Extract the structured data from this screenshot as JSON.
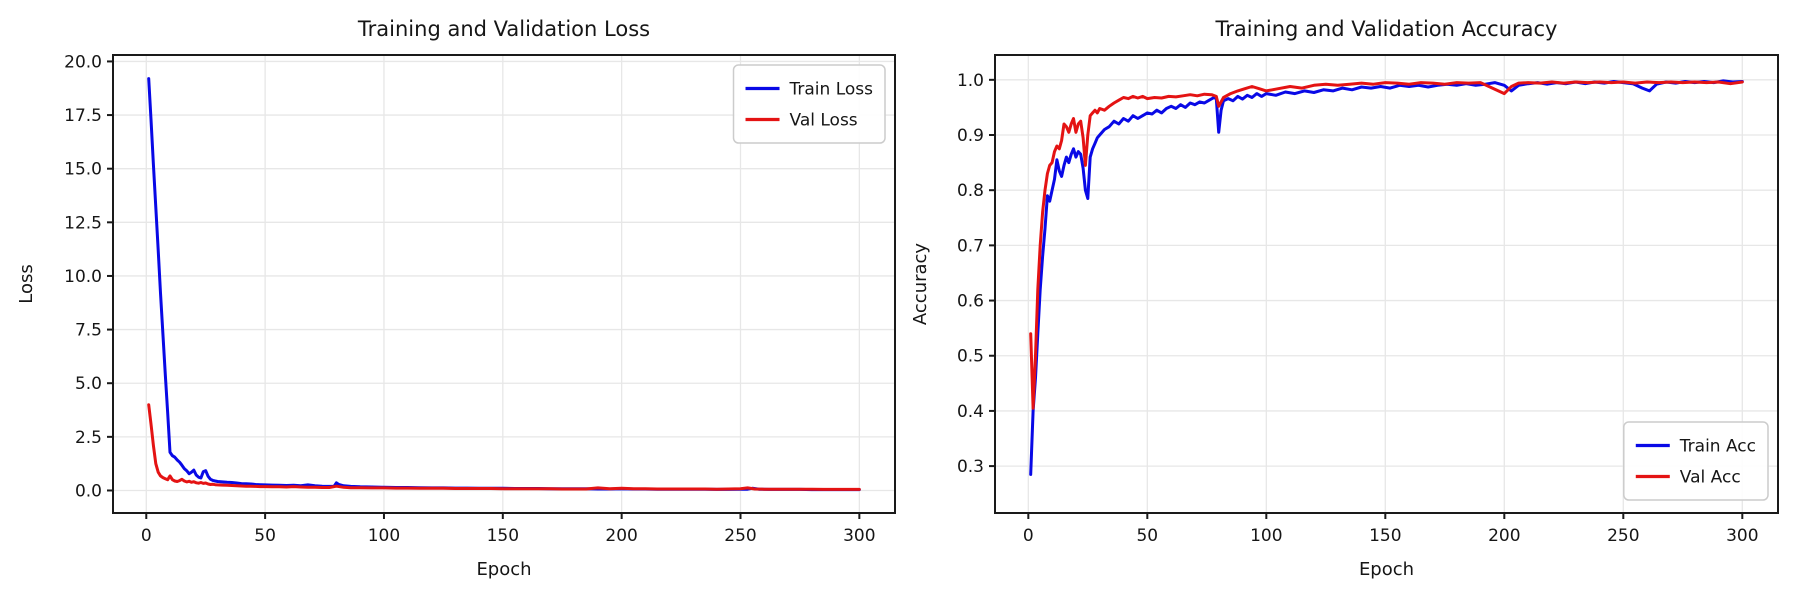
{
  "figure": {
    "background": "#ffffff",
    "grid_color": "#e7e7e7",
    "spine_color": "#1a1a1a",
    "text_color": "#161616",
    "legend_border": "#cccccc"
  },
  "chart_data": [
    {
      "id": "loss",
      "type": "line",
      "title": "Training and Validation Loss",
      "xlabel": "Epoch",
      "ylabel": "Loss",
      "xlim": [
        -14,
        315
      ],
      "ylim": [
        -1.05,
        20.3
      ],
      "grid": true,
      "xticks": [
        0,
        50,
        100,
        150,
        200,
        250,
        300
      ],
      "xtick_labels": [
        "0",
        "50",
        "100",
        "150",
        "200",
        "250",
        "300"
      ],
      "yticks": [
        0,
        2.5,
        5,
        7.5,
        10,
        12.5,
        15,
        17.5,
        20
      ],
      "ytick_labels": [
        "0.0",
        "2.5",
        "5.0",
        "7.5",
        "10.0",
        "12.5",
        "15.0",
        "17.5",
        "20.0"
      ],
      "legend": {
        "position": "top-right",
        "entries": [
          {
            "label": "Train Loss",
            "color": "#0909e6"
          },
          {
            "label": "Val Loss",
            "color": "#e41313"
          }
        ]
      },
      "series": [
        {
          "name": "Train Loss",
          "slug": "train-loss",
          "color": "#0909e6",
          "x": [
            1,
            2,
            3,
            4,
            5,
            6,
            7,
            8,
            9,
            10,
            11,
            12,
            13,
            14,
            15,
            16,
            17,
            18,
            19,
            20,
            21,
            22,
            23,
            24,
            25,
            26,
            27,
            28,
            29,
            30,
            32,
            34,
            36,
            38,
            40,
            42,
            44,
            46,
            48,
            50,
            53,
            56,
            59,
            62,
            65,
            68,
            71,
            74,
            77,
            79,
            80,
            81,
            83,
            86,
            90,
            95,
            100,
            105,
            110,
            115,
            120,
            125,
            130,
            135,
            140,
            145,
            150,
            155,
            160,
            165,
            170,
            175,
            180,
            185,
            190,
            195,
            200,
            205,
            210,
            215,
            220,
            225,
            230,
            235,
            240,
            245,
            250,
            253,
            255,
            258,
            262,
            266,
            270,
            275,
            280,
            285,
            290,
            295,
            300
          ],
          "y": [
            19.2,
            17.3,
            15.2,
            13.2,
            11.2,
            9.2,
            7.3,
            5.4,
            3.6,
            1.78,
            1.62,
            1.55,
            1.42,
            1.32,
            1.18,
            1.02,
            0.92,
            0.78,
            0.85,
            0.95,
            0.72,
            0.62,
            0.58,
            0.88,
            0.92,
            0.66,
            0.52,
            0.47,
            0.44,
            0.42,
            0.4,
            0.38,
            0.37,
            0.35,
            0.32,
            0.31,
            0.3,
            0.28,
            0.27,
            0.26,
            0.25,
            0.24,
            0.23,
            0.24,
            0.22,
            0.26,
            0.22,
            0.2,
            0.19,
            0.2,
            0.36,
            0.28,
            0.22,
            0.19,
            0.17,
            0.16,
            0.15,
            0.14,
            0.14,
            0.13,
            0.12,
            0.12,
            0.11,
            0.11,
            0.1,
            0.1,
            0.1,
            0.09,
            0.09,
            0.09,
            0.08,
            0.08,
            0.08,
            0.08,
            0.07,
            0.07,
            0.08,
            0.07,
            0.07,
            0.06,
            0.06,
            0.06,
            0.06,
            0.06,
            0.05,
            0.05,
            0.06,
            0.06,
            0.1,
            0.06,
            0.05,
            0.05,
            0.05,
            0.05,
            0.04,
            0.04,
            0.04,
            0.04,
            0.04
          ]
        },
        {
          "name": "Val Loss",
          "slug": "val-loss",
          "color": "#e41313",
          "x": [
            1,
            2,
            3,
            4,
            5,
            6,
            7,
            8,
            9,
            10,
            11,
            12,
            13,
            14,
            15,
            16,
            17,
            18,
            19,
            20,
            21,
            22,
            23,
            24,
            25,
            26,
            27,
            28,
            29,
            30,
            32,
            34,
            36,
            38,
            40,
            42,
            44,
            46,
            48,
            50,
            53,
            56,
            59,
            62,
            65,
            68,
            71,
            74,
            77,
            80,
            83,
            86,
            90,
            95,
            100,
            105,
            110,
            115,
            120,
            125,
            130,
            135,
            140,
            145,
            150,
            155,
            160,
            165,
            170,
            175,
            180,
            185,
            190,
            195,
            200,
            205,
            210,
            215,
            220,
            225,
            230,
            235,
            240,
            245,
            250,
            253,
            256,
            260,
            265,
            270,
            275,
            280,
            285,
            290,
            295,
            300
          ],
          "y": [
            4.0,
            3.1,
            2.1,
            1.25,
            0.85,
            0.68,
            0.6,
            0.55,
            0.5,
            0.68,
            0.5,
            0.44,
            0.42,
            0.46,
            0.52,
            0.44,
            0.4,
            0.43,
            0.38,
            0.41,
            0.36,
            0.34,
            0.37,
            0.33,
            0.35,
            0.3,
            0.28,
            0.29,
            0.27,
            0.26,
            0.25,
            0.24,
            0.23,
            0.22,
            0.21,
            0.2,
            0.2,
            0.19,
            0.18,
            0.18,
            0.17,
            0.17,
            0.16,
            0.18,
            0.16,
            0.15,
            0.15,
            0.14,
            0.14,
            0.2,
            0.15,
            0.13,
            0.13,
            0.12,
            0.12,
            0.11,
            0.11,
            0.1,
            0.1,
            0.1,
            0.09,
            0.09,
            0.09,
            0.09,
            0.08,
            0.08,
            0.08,
            0.08,
            0.08,
            0.07,
            0.07,
            0.07,
            0.12,
            0.08,
            0.1,
            0.08,
            0.08,
            0.07,
            0.07,
            0.07,
            0.07,
            0.07,
            0.06,
            0.07,
            0.08,
            0.12,
            0.07,
            0.06,
            0.06,
            0.06,
            0.06,
            0.06,
            0.05,
            0.05,
            0.05,
            0.05
          ]
        }
      ]
    },
    {
      "id": "accuracy",
      "type": "line",
      "title": "Training and Validation Accuracy",
      "xlabel": "Epoch",
      "ylabel": "Accuracy",
      "xlim": [
        -14,
        315
      ],
      "ylim": [
        0.215,
        1.045
      ],
      "grid": true,
      "xticks": [
        0,
        50,
        100,
        150,
        200,
        250,
        300
      ],
      "xtick_labels": [
        "0",
        "50",
        "100",
        "150",
        "200",
        "250",
        "300"
      ],
      "yticks": [
        0.3,
        0.4,
        0.5,
        0.6,
        0.7,
        0.8,
        0.9,
        1.0
      ],
      "ytick_labels": [
        "0.3",
        "0.4",
        "0.5",
        "0.6",
        "0.7",
        "0.8",
        "0.9",
        "1.0"
      ],
      "legend": {
        "position": "bottom-right",
        "entries": [
          {
            "label": "Train Acc",
            "color": "#0909e6"
          },
          {
            "label": "Val Acc",
            "color": "#e41313"
          }
        ]
      },
      "series": [
        {
          "name": "Train Acc",
          "slug": "train-acc",
          "color": "#0909e6",
          "x": [
            1,
            2,
            3,
            4,
            5,
            6,
            7,
            8,
            9,
            10,
            11,
            12,
            13,
            14,
            15,
            16,
            17,
            18,
            19,
            20,
            21,
            22,
            23,
            24,
            25,
            26,
            27,
            28,
            29,
            30,
            32,
            34,
            36,
            38,
            40,
            42,
            44,
            46,
            48,
            50,
            52,
            54,
            56,
            58,
            60,
            62,
            64,
            66,
            68,
            70,
            72,
            74,
            76,
            78,
            79,
            80,
            81,
            82,
            84,
            86,
            88,
            90,
            92,
            94,
            96,
            98,
            100,
            104,
            108,
            112,
            116,
            120,
            124,
            128,
            132,
            136,
            140,
            144,
            148,
            152,
            156,
            160,
            164,
            168,
            172,
            176,
            180,
            184,
            188,
            192,
            196,
            200,
            203,
            206,
            210,
            214,
            218,
            222,
            226,
            230,
            234,
            238,
            242,
            246,
            250,
            254,
            258,
            261,
            264,
            268,
            272,
            276,
            280,
            284,
            288,
            292,
            296,
            300
          ],
          "y": [
            0.285,
            0.4,
            0.46,
            0.54,
            0.62,
            0.68,
            0.73,
            0.79,
            0.78,
            0.8,
            0.82,
            0.855,
            0.835,
            0.825,
            0.845,
            0.86,
            0.85,
            0.865,
            0.875,
            0.86,
            0.87,
            0.865,
            0.84,
            0.8,
            0.785,
            0.86,
            0.875,
            0.885,
            0.895,
            0.9,
            0.91,
            0.915,
            0.925,
            0.92,
            0.93,
            0.925,
            0.935,
            0.93,
            0.935,
            0.94,
            0.938,
            0.945,
            0.94,
            0.948,
            0.952,
            0.948,
            0.955,
            0.95,
            0.958,
            0.955,
            0.96,
            0.958,
            0.963,
            0.968,
            0.966,
            0.905,
            0.945,
            0.962,
            0.966,
            0.962,
            0.97,
            0.965,
            0.972,
            0.968,
            0.975,
            0.97,
            0.975,
            0.972,
            0.978,
            0.975,
            0.98,
            0.977,
            0.982,
            0.98,
            0.985,
            0.982,
            0.987,
            0.985,
            0.988,
            0.985,
            0.99,
            0.988,
            0.99,
            0.987,
            0.99,
            0.992,
            0.99,
            0.993,
            0.99,
            0.992,
            0.995,
            0.99,
            0.98,
            0.99,
            0.993,
            0.995,
            0.992,
            0.995,
            0.993,
            0.996,
            0.993,
            0.996,
            0.994,
            0.997,
            0.995,
            0.993,
            0.985,
            0.98,
            0.992,
            0.996,
            0.994,
            0.997,
            0.995,
            0.997,
            0.995,
            0.998,
            0.996,
            0.997
          ]
        },
        {
          "name": "Val Acc",
          "slug": "val-acc",
          "color": "#e41313",
          "x": [
            1,
            2,
            3,
            4,
            5,
            6,
            7,
            8,
            9,
            10,
            11,
            12,
            13,
            14,
            15,
            16,
            17,
            18,
            19,
            20,
            21,
            22,
            23,
            24,
            25,
            26,
            27,
            28,
            29,
            30,
            32,
            34,
            36,
            38,
            40,
            42,
            44,
            46,
            48,
            50,
            53,
            56,
            59,
            62,
            65,
            68,
            71,
            74,
            77,
            79,
            80,
            82,
            85,
            88,
            91,
            94,
            97,
            100,
            105,
            110,
            115,
            120,
            125,
            130,
            135,
            140,
            145,
            150,
            155,
            160,
            165,
            170,
            175,
            180,
            185,
            190,
            195,
            200,
            203,
            206,
            210,
            215,
            220,
            225,
            230,
            235,
            240,
            245,
            250,
            255,
            260,
            265,
            270,
            275,
            280,
            285,
            290,
            295,
            300
          ],
          "y": [
            0.54,
            0.405,
            0.5,
            0.62,
            0.7,
            0.76,
            0.8,
            0.83,
            0.845,
            0.85,
            0.87,
            0.88,
            0.875,
            0.89,
            0.92,
            0.915,
            0.905,
            0.92,
            0.93,
            0.905,
            0.92,
            0.925,
            0.895,
            0.845,
            0.9,
            0.935,
            0.94,
            0.945,
            0.94,
            0.948,
            0.945,
            0.952,
            0.958,
            0.963,
            0.968,
            0.966,
            0.97,
            0.967,
            0.97,
            0.966,
            0.968,
            0.967,
            0.97,
            0.969,
            0.971,
            0.973,
            0.971,
            0.974,
            0.973,
            0.97,
            0.952,
            0.968,
            0.975,
            0.98,
            0.984,
            0.988,
            0.984,
            0.98,
            0.984,
            0.988,
            0.985,
            0.99,
            0.992,
            0.99,
            0.992,
            0.994,
            0.992,
            0.995,
            0.994,
            0.992,
            0.995,
            0.994,
            0.992,
            0.995,
            0.994,
            0.995,
            0.985,
            0.975,
            0.988,
            0.994,
            0.995,
            0.994,
            0.996,
            0.994,
            0.996,
            0.995,
            0.996,
            0.995,
            0.996,
            0.994,
            0.996,
            0.995,
            0.996,
            0.995,
            0.996,
            0.995,
            0.996,
            0.993,
            0.996
          ]
        }
      ]
    }
  ]
}
